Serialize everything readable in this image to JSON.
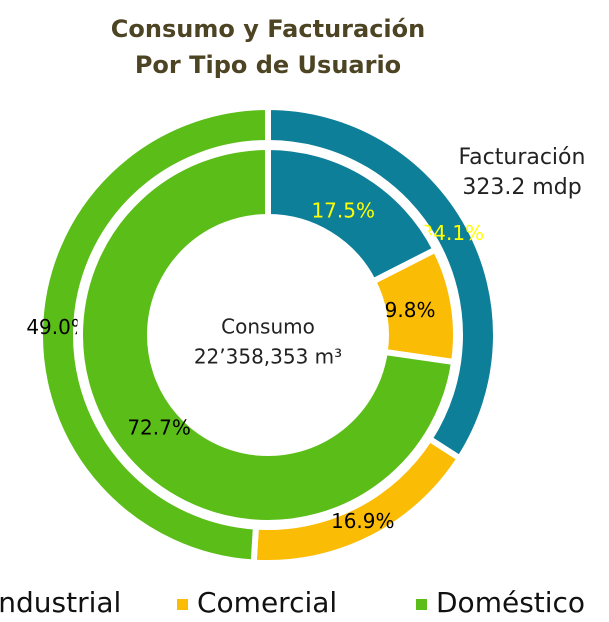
{
  "chart_data": {
    "type": "nested-donut",
    "title": "Consumo y Facturación",
    "subtitle": "Por Tipo de Usuario",
    "categories": [
      "Industrial",
      "Comercial",
      "Doméstico"
    ],
    "colors": [
      "#0e7f99",
      "#fbbc05",
      "#5bbd18"
    ],
    "label_colors": [
      "#ffff00",
      "#000000",
      "#000000"
    ],
    "rings": [
      {
        "name": "Facturación",
        "total_label": "323.2 mdp",
        "values": [
          34.1,
          16.9,
          49.0
        ],
        "value_labels": [
          "34.1%",
          "16.9%",
          "49.0%"
        ]
      },
      {
        "name": "Consumo",
        "total_label": "22’358,353 m³",
        "values": [
          17.5,
          9.8,
          72.7
        ],
        "value_labels": [
          "17.5%",
          "9.8%",
          "72.7%"
        ]
      }
    ]
  }
}
